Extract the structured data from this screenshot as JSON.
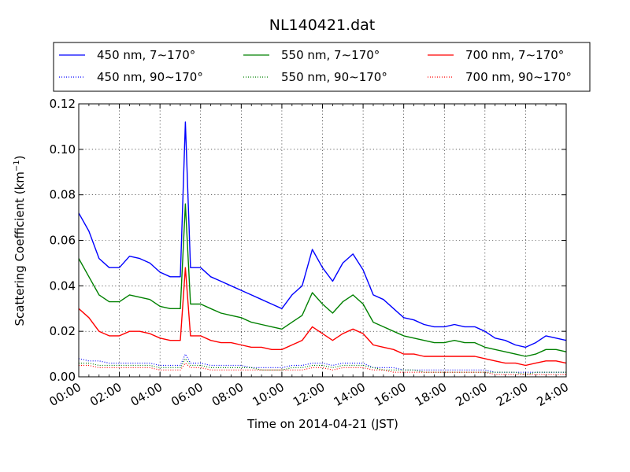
{
  "chart_data": {
    "type": "line",
    "title": "NL140421.dat",
    "xlabel": "Time on 2014-04-21 (JST)",
    "ylabel_main": "Scattering Coefficient (km",
    "ylabel_sup": "−1",
    "ylabel_close": ")",
    "xlim": [
      "00:00",
      "24:00"
    ],
    "ylim": [
      0,
      0.12
    ],
    "grid": true,
    "legend_location": "top, above plot, 3 columns",
    "x_ticks": [
      "00:00",
      "02:00",
      "04:00",
      "06:00",
      "08:00",
      "10:00",
      "12:00",
      "14:00",
      "16:00",
      "18:00",
      "20:00",
      "22:00",
      "24:00"
    ],
    "y_ticks": [
      "0.00",
      "0.02",
      "0.04",
      "0.06",
      "0.08",
      "0.10",
      "0.12"
    ],
    "x_hours": [
      0,
      0.5,
      1,
      1.5,
      2,
      2.5,
      3,
      3.5,
      4,
      4.5,
      5,
      5.25,
      5.5,
      6,
      6.5,
      7,
      7.5,
      8,
      8.5,
      9,
      9.5,
      10,
      10.5,
      11,
      11.5,
      12,
      12.5,
      13,
      13.5,
      14,
      14.5,
      15,
      15.5,
      16,
      16.5,
      17,
      17.5,
      18,
      18.5,
      19,
      19.5,
      20,
      20.5,
      21,
      21.5,
      22,
      22.5,
      23,
      23.5,
      24
    ],
    "series": [
      {
        "name": "450 nm, 7∼170°",
        "color": "#0000ff",
        "style": "solid",
        "values": [
          0.072,
          0.064,
          0.052,
          0.048,
          0.048,
          0.053,
          0.052,
          0.05,
          0.046,
          0.044,
          0.044,
          0.112,
          0.048,
          0.048,
          0.044,
          0.042,
          0.04,
          0.038,
          0.036,
          0.034,
          0.032,
          0.03,
          0.036,
          0.04,
          0.056,
          0.048,
          0.042,
          0.05,
          0.054,
          0.047,
          0.036,
          0.034,
          0.03,
          0.026,
          0.025,
          0.023,
          0.022,
          0.022,
          0.023,
          0.022,
          0.022,
          0.02,
          0.017,
          0.016,
          0.014,
          0.013,
          0.015,
          0.018,
          0.017,
          0.016
        ]
      },
      {
        "name": "550 nm, 7∼170°",
        "color": "#008000",
        "style": "solid",
        "values": [
          0.052,
          0.044,
          0.036,
          0.033,
          0.033,
          0.036,
          0.035,
          0.034,
          0.031,
          0.03,
          0.03,
          0.076,
          0.032,
          0.032,
          0.03,
          0.028,
          0.027,
          0.026,
          0.024,
          0.023,
          0.022,
          0.021,
          0.024,
          0.027,
          0.037,
          0.032,
          0.028,
          0.033,
          0.036,
          0.032,
          0.024,
          0.022,
          0.02,
          0.018,
          0.017,
          0.016,
          0.015,
          0.015,
          0.016,
          0.015,
          0.015,
          0.013,
          0.012,
          0.011,
          0.01,
          0.009,
          0.01,
          0.012,
          0.012,
          0.011
        ]
      },
      {
        "name": "700 nm, 7∼170°",
        "color": "#ff0000",
        "style": "solid",
        "values": [
          0.03,
          0.026,
          0.02,
          0.018,
          0.018,
          0.02,
          0.02,
          0.019,
          0.017,
          0.016,
          0.016,
          0.048,
          0.018,
          0.018,
          0.016,
          0.015,
          0.015,
          0.014,
          0.013,
          0.013,
          0.012,
          0.012,
          0.014,
          0.016,
          0.022,
          0.019,
          0.016,
          0.019,
          0.021,
          0.019,
          0.014,
          0.013,
          0.012,
          0.01,
          0.01,
          0.009,
          0.009,
          0.009,
          0.009,
          0.009,
          0.009,
          0.008,
          0.007,
          0.006,
          0.006,
          0.005,
          0.006,
          0.007,
          0.007,
          0.006
        ]
      },
      {
        "name": "450 nm, 90∼170°",
        "color": "#0000ff",
        "style": "dotted",
        "values": [
          0.008,
          0.007,
          0.007,
          0.006,
          0.006,
          0.006,
          0.006,
          0.006,
          0.005,
          0.005,
          0.005,
          0.01,
          0.006,
          0.006,
          0.005,
          0.005,
          0.005,
          0.005,
          0.004,
          0.004,
          0.004,
          0.004,
          0.005,
          0.005,
          0.006,
          0.006,
          0.005,
          0.006,
          0.006,
          0.006,
          0.004,
          0.004,
          0.004,
          0.003,
          0.003,
          0.003,
          0.003,
          0.003,
          0.003,
          0.003,
          0.003,
          0.003,
          0.002,
          0.002,
          0.002,
          0.002,
          0.002,
          0.002,
          0.002,
          0.002
        ]
      },
      {
        "name": "550 nm, 90∼170°",
        "color": "#008000",
        "style": "dotted",
        "values": [
          0.006,
          0.006,
          0.005,
          0.005,
          0.005,
          0.005,
          0.005,
          0.005,
          0.004,
          0.004,
          0.004,
          0.008,
          0.005,
          0.005,
          0.004,
          0.004,
          0.004,
          0.004,
          0.004,
          0.003,
          0.003,
          0.003,
          0.004,
          0.004,
          0.005,
          0.005,
          0.004,
          0.005,
          0.005,
          0.005,
          0.004,
          0.003,
          0.003,
          0.003,
          0.003,
          0.002,
          0.002,
          0.002,
          0.002,
          0.002,
          0.002,
          0.002,
          0.002,
          0.002,
          0.002,
          0.001,
          0.002,
          0.002,
          0.002,
          0.002
        ]
      },
      {
        "name": "700 nm, 90∼170°",
        "color": "#ff0000",
        "style": "dotted",
        "values": [
          0.005,
          0.005,
          0.004,
          0.004,
          0.004,
          0.004,
          0.004,
          0.004,
          0.003,
          0.003,
          0.003,
          0.006,
          0.004,
          0.004,
          0.003,
          0.003,
          0.003,
          0.003,
          0.003,
          0.003,
          0.003,
          0.003,
          0.003,
          0.003,
          0.004,
          0.004,
          0.003,
          0.004,
          0.004,
          0.004,
          0.003,
          0.003,
          0.002,
          0.002,
          0.002,
          0.002,
          0.002,
          0.002,
          0.002,
          0.002,
          0.002,
          0.002,
          0.001,
          0.001,
          0.001,
          0.001,
          0.001,
          0.001,
          0.001,
          0.001
        ]
      }
    ]
  }
}
